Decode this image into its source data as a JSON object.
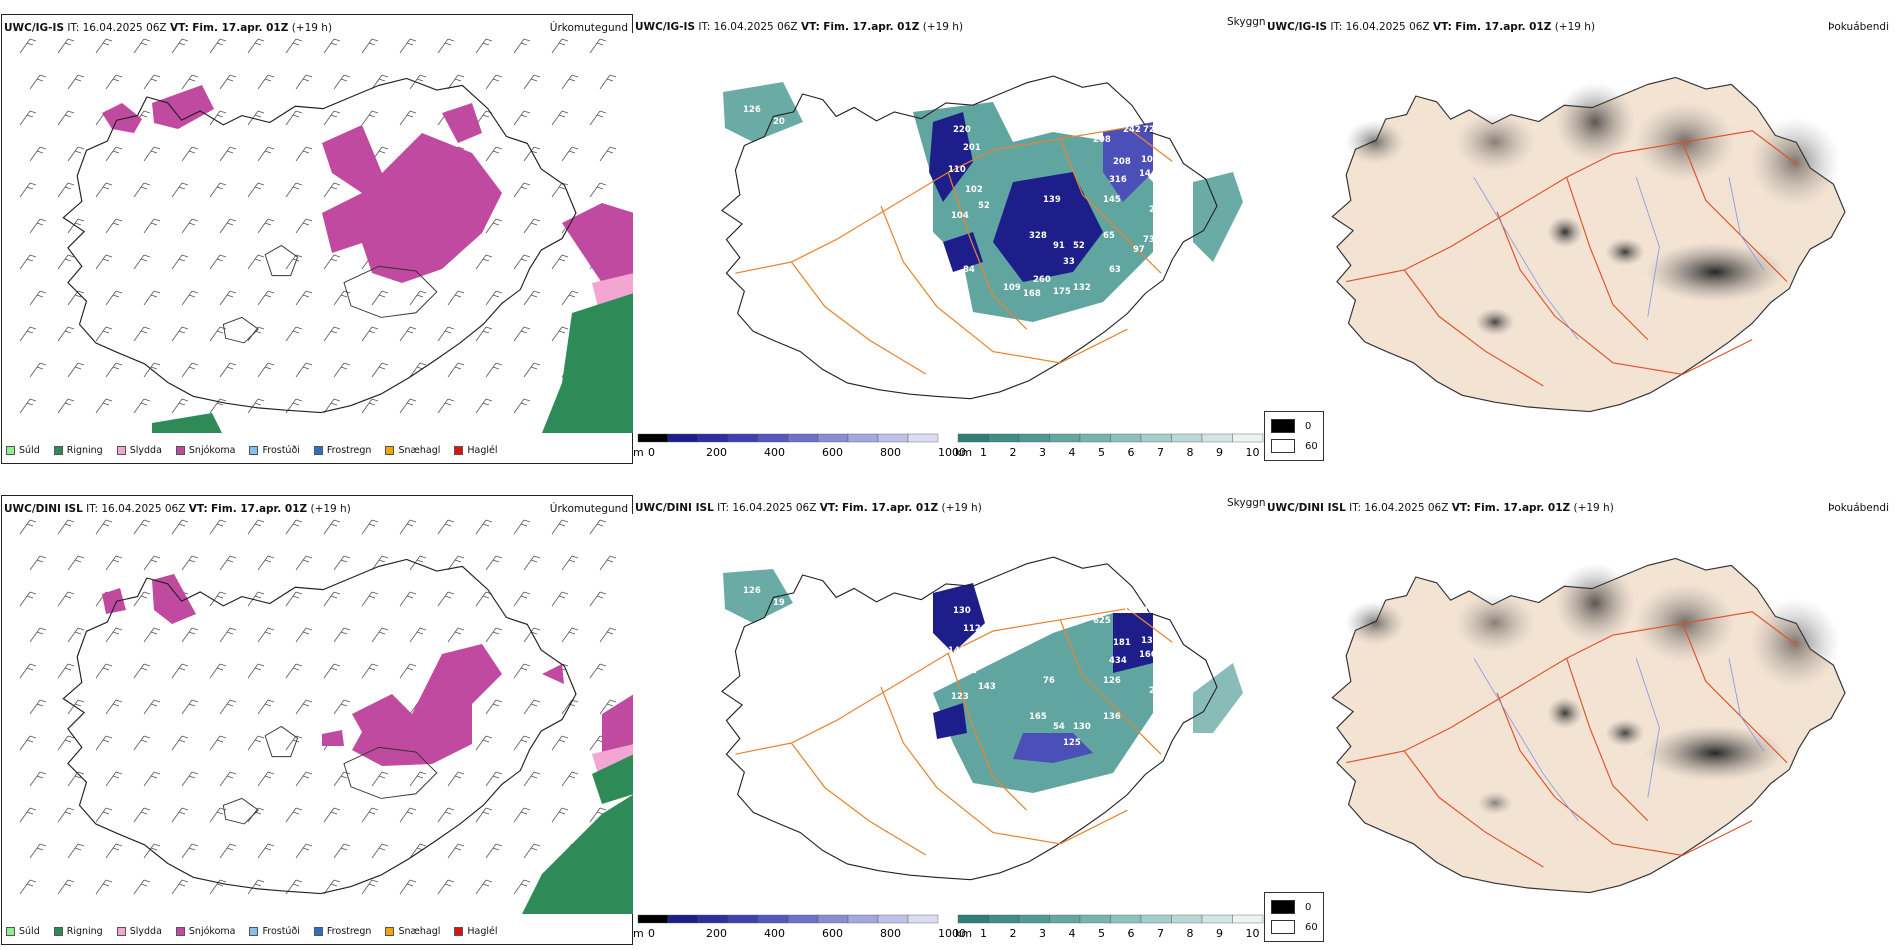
{
  "rows": [
    {
      "model": "UWC/IG-IS",
      "it_label": "IT:",
      "it_value": "16.04.2025 06Z",
      "vt_label": "VT:",
      "vt_value": "Fim. 17.apr. 01Z",
      "lead": "(+19 h)",
      "titles": [
        "Úrkomutegund",
        "Skyggni",
        "Þokuábendi"
      ],
      "cloud_labels": [
        "126",
        "165",
        "20",
        "220",
        "201",
        "110",
        "102",
        "52",
        "104",
        "139",
        "208",
        "242",
        "72",
        "316",
        "208",
        "144",
        "145",
        "291",
        "106",
        "328",
        "91",
        "52",
        "65",
        "33",
        "260",
        "132",
        "175",
        "168",
        "109",
        "84",
        "126",
        "63",
        "97",
        "73",
        "332"
      ]
    },
    {
      "model": "UWC/DINI ISL",
      "it_label": "IT:",
      "it_value": "16.04.2025 06Z",
      "vt_label": "VT:",
      "vt_value": "Fim. 17.apr. 01Z",
      "lead": "(+19 h)",
      "titles": [
        "Úrkomutegund",
        "Skyggni",
        "Þokuábendi"
      ],
      "cloud_labels": [
        "126",
        "165",
        "19",
        "130",
        "112",
        "149",
        "51",
        "143",
        "123",
        "76",
        "625",
        "168",
        "130",
        "434",
        "181",
        "160",
        "126",
        "217",
        "130",
        "165",
        "54",
        "130",
        "136",
        "125"
      ]
    }
  ],
  "precip_legend": [
    {
      "label": "Súld",
      "color": "#90ee90"
    },
    {
      "label": "Rigning",
      "color": "#2e8b57"
    },
    {
      "label": "Slydda",
      "color": "#f4a6d2"
    },
    {
      "label": "Snjókoma",
      "color": "#c04aa0"
    },
    {
      "label": "Frostúði",
      "color": "#87bfef"
    },
    {
      "label": "Frostregn",
      "color": "#2f6fc1"
    },
    {
      "label": "Snæhagl",
      "color": "#f4a300"
    },
    {
      "label": "Haglél",
      "color": "#e01010"
    }
  ],
  "cloudbase_scale": {
    "unit": "m",
    "ticks": [
      "0",
      "200",
      "400",
      "600",
      "800",
      "1000"
    ]
  },
  "visibility_scale": {
    "unit": "km",
    "ticks": [
      "1",
      "2",
      "3",
      "4",
      "5",
      "6",
      "7",
      "8",
      "9",
      "10"
    ]
  },
  "fog_scale": {
    "values": [
      "0",
      "60"
    ]
  },
  "colors": {
    "snow": "#c04aa0",
    "rain": "#2e8b57",
    "sleet": "#f4a6d2",
    "cloud_dark": "#1d1e8a",
    "cloud_mid": "#4b4fb8",
    "vis_teal": "#3a8f88",
    "roads": "#e8842f",
    "land": "#f3e3d3"
  }
}
